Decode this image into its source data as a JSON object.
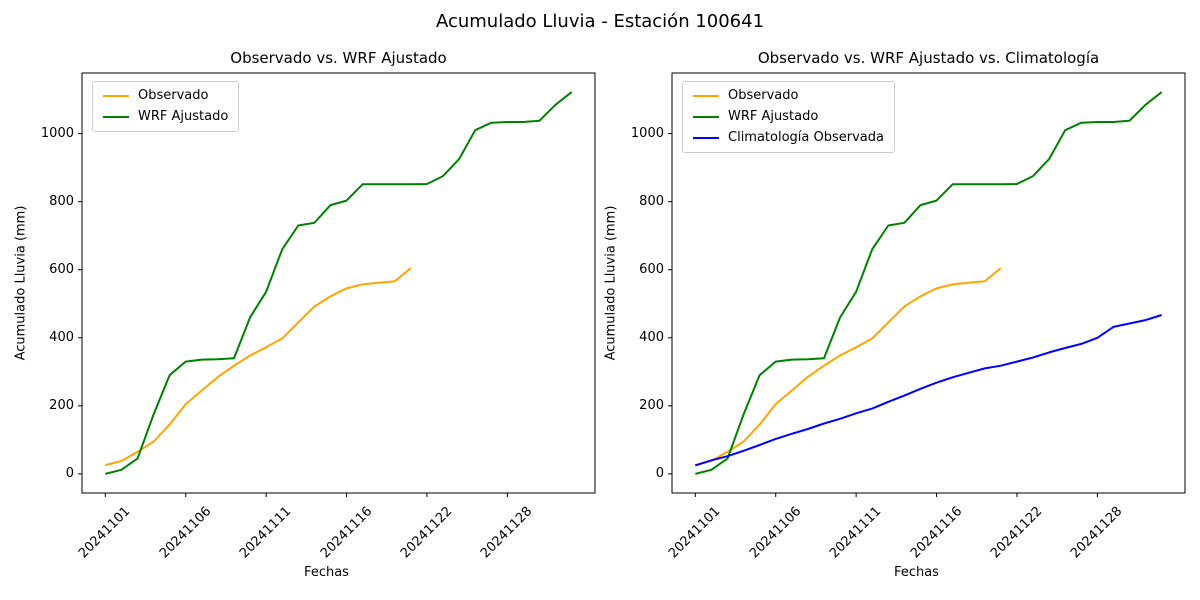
{
  "suptitle": "Acumulado Lluvia - Estación 100641",
  "chart_data": [
    {
      "type": "line",
      "title": "Observado vs. WRF Ajustado",
      "xlabel": "Fechas",
      "ylabel": "Acumulado Lluvia (mm)",
      "x_tick_positions": [
        0,
        5,
        10,
        15,
        20,
        25
      ],
      "x_tick_labels": [
        "20241101",
        "20241106",
        "20241111",
        "20241116",
        "20241122",
        "20241128"
      ],
      "y_ticks": [
        0,
        200,
        400,
        600,
        800,
        1000
      ],
      "xlim": [
        -1.45,
        30.45
      ],
      "ylim": [
        -56.1,
        1178.1
      ],
      "grid": false,
      "legend_position": "upper-left",
      "x_values_are_day_indices": true,
      "series": [
        {
          "name": "Observado",
          "color": "#FFA500",
          "values": [
            26,
            38,
            65,
            95,
            145,
            205,
            245,
            285,
            318,
            348,
            372,
            398,
            445,
            492,
            522,
            545,
            557,
            562,
            566,
            605
          ]
        },
        {
          "name": "WRF Ajustado",
          "color": "#008000",
          "values": [
            0,
            12,
            45,
            175,
            290,
            330,
            336,
            337,
            340,
            460,
            535,
            660,
            730,
            738,
            790,
            803,
            851,
            851,
            851,
            851,
            852,
            875,
            925,
            1010,
            1032,
            1034,
            1034,
            1038,
            1085,
            1122
          ]
        }
      ]
    },
    {
      "type": "line",
      "title": "Observado vs. WRF Ajustado vs. Climatología",
      "xlabel": "Fechas",
      "ylabel": "Acumulado Lluvia (mm)",
      "x_tick_positions": [
        0,
        5,
        10,
        15,
        20,
        25
      ],
      "x_tick_labels": [
        "20241101",
        "20241106",
        "20241111",
        "20241116",
        "20241122",
        "20241128"
      ],
      "y_ticks": [
        0,
        200,
        400,
        600,
        800,
        1000
      ],
      "xlim": [
        -1.45,
        30.45
      ],
      "ylim": [
        -56.1,
        1178.1
      ],
      "grid": false,
      "legend_position": "upper-left",
      "x_values_are_day_indices": true,
      "series": [
        {
          "name": "Observado",
          "color": "#FFA500",
          "values": [
            26,
            38,
            65,
            95,
            145,
            205,
            245,
            285,
            318,
            348,
            372,
            398,
            445,
            492,
            522,
            545,
            557,
            562,
            566,
            605
          ]
        },
        {
          "name": "WRF Ajustado",
          "color": "#008000",
          "values": [
            0,
            12,
            45,
            175,
            290,
            330,
            336,
            337,
            340,
            460,
            535,
            660,
            730,
            738,
            790,
            803,
            851,
            851,
            851,
            851,
            852,
            875,
            925,
            1010,
            1032,
            1034,
            1034,
            1038,
            1085,
            1122
          ]
        },
        {
          "name": "Climatología Observada",
          "color": "#0000FF",
          "values": [
            25,
            40,
            52,
            68,
            85,
            103,
            118,
            132,
            148,
            162,
            178,
            192,
            212,
            230,
            250,
            268,
            284,
            297,
            310,
            318,
            330,
            342,
            357,
            370,
            382,
            400,
            432,
            442,
            452,
            467
          ]
        }
      ]
    }
  ]
}
